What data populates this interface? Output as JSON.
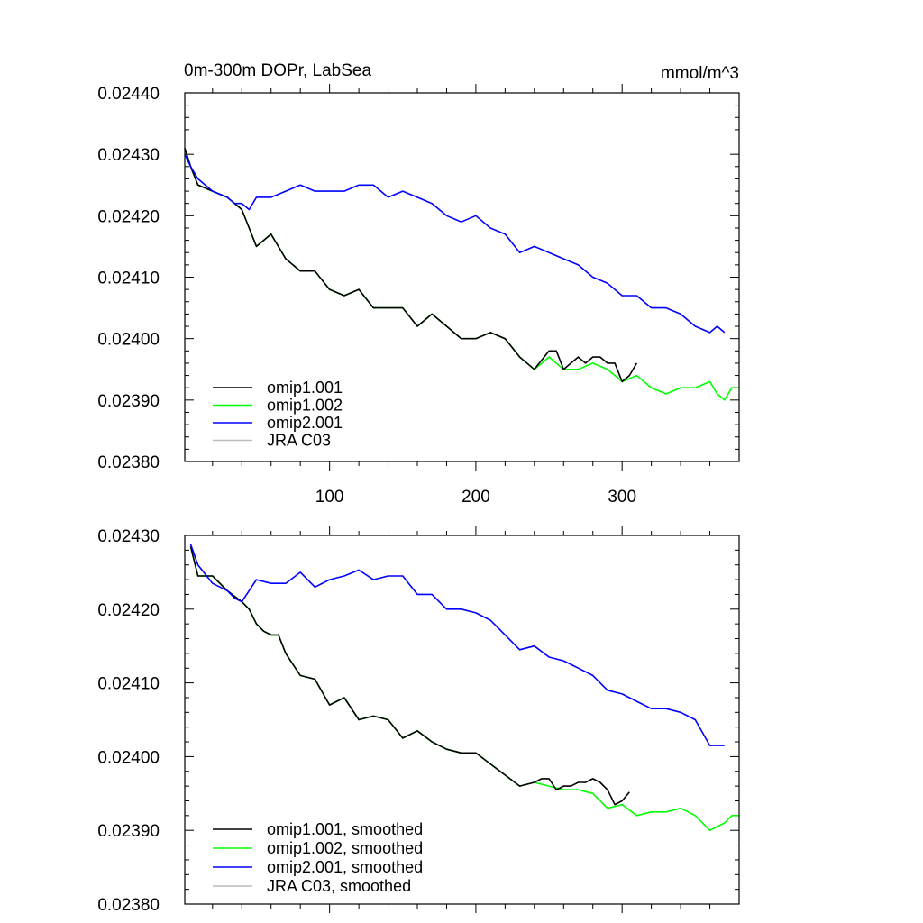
{
  "chart_data": [
    {
      "type": "line",
      "title": "0m-300m DOPr, LabSea",
      "units": "mmol/m^3",
      "xlabel": "",
      "ylabel": "",
      "xlim": [
        1,
        380
      ],
      "ylim": [
        0.0238,
        0.0244
      ],
      "xticks": [
        100,
        200,
        300
      ],
      "xtick_labels": [
        "100",
        "200",
        "300"
      ],
      "yticks": [
        0.0238,
        0.0239,
        0.024,
        0.0241,
        0.0242,
        0.0243,
        0.0244
      ],
      "ytick_labels": [
        "0.02380",
        "0.02390",
        "0.02400",
        "0.02410",
        "0.02420",
        "0.02430",
        "0.02440"
      ],
      "legend_position": "bottom-left",
      "series": [
        {
          "name": "omip1.001",
          "color": "#000000",
          "x": [
            1,
            5,
            10,
            20,
            30,
            40,
            50,
            60,
            70,
            80,
            90,
            100,
            110,
            120,
            130,
            140,
            150,
            160,
            170,
            180,
            190,
            200,
            210,
            220,
            230,
            240,
            250,
            255,
            260,
            265,
            270,
            275,
            280,
            285,
            290,
            295,
            300,
            305,
            310
          ],
          "y": [
            0.02431,
            0.02428,
            0.02425,
            0.02424,
            0.02423,
            0.02421,
            0.02415,
            0.02417,
            0.02413,
            0.02411,
            0.02411,
            0.02408,
            0.02407,
            0.02408,
            0.02405,
            0.02405,
            0.02405,
            0.02402,
            0.02404,
            0.02402,
            0.024,
            0.024,
            0.02401,
            0.024,
            0.02397,
            0.02395,
            0.02398,
            0.02398,
            0.02395,
            0.02396,
            0.02397,
            0.02396,
            0.02397,
            0.02397,
            0.02396,
            0.02396,
            0.02393,
            0.02394,
            0.02396
          ]
        },
        {
          "name": "omip1.002",
          "color": "#00ff00",
          "x": [
            1,
            5,
            10,
            20,
            30,
            40,
            50,
            60,
            70,
            80,
            90,
            100,
            110,
            120,
            130,
            140,
            150,
            160,
            170,
            180,
            190,
            200,
            210,
            220,
            230,
            240,
            250,
            260,
            270,
            280,
            290,
            300,
            310,
            320,
            330,
            340,
            350,
            360,
            365,
            370,
            375,
            380
          ],
          "y": [
            0.02431,
            0.02428,
            0.02425,
            0.02424,
            0.02423,
            0.02421,
            0.02415,
            0.02417,
            0.02413,
            0.02411,
            0.02411,
            0.02408,
            0.02407,
            0.02408,
            0.02405,
            0.02405,
            0.02405,
            0.02402,
            0.02404,
            0.02402,
            0.024,
            0.024,
            0.02401,
            0.024,
            0.02397,
            0.02395,
            0.02397,
            0.02395,
            0.02395,
            0.02396,
            0.02395,
            0.02393,
            0.02394,
            0.02392,
            0.02391,
            0.02392,
            0.02392,
            0.02393,
            0.02391,
            0.0239,
            0.02392,
            0.02392
          ]
        },
        {
          "name": "omip2.001",
          "color": "#0000ff",
          "x": [
            1,
            5,
            10,
            20,
            30,
            35,
            40,
            45,
            50,
            60,
            70,
            80,
            90,
            100,
            110,
            120,
            130,
            140,
            150,
            160,
            170,
            180,
            190,
            200,
            210,
            220,
            230,
            240,
            250,
            260,
            270,
            280,
            290,
            300,
            310,
            320,
            330,
            340,
            350,
            360,
            365,
            370
          ],
          "y": [
            0.0243,
            0.02428,
            0.02426,
            0.02424,
            0.02423,
            0.02422,
            0.02422,
            0.02421,
            0.02423,
            0.02423,
            0.02424,
            0.02425,
            0.02424,
            0.02424,
            0.02424,
            0.02425,
            0.02425,
            0.02423,
            0.02424,
            0.02423,
            0.02422,
            0.0242,
            0.02419,
            0.0242,
            0.02418,
            0.02417,
            0.02414,
            0.02415,
            0.02414,
            0.02413,
            0.02412,
            0.0241,
            0.02409,
            0.02407,
            0.02407,
            0.02405,
            0.02405,
            0.02404,
            0.02402,
            0.02401,
            0.02402,
            0.02401
          ]
        },
        {
          "name": "JRA C03",
          "color": "#bbbbbb",
          "x": [],
          "y": []
        }
      ]
    },
    {
      "type": "line",
      "title": "",
      "xlabel": "",
      "ylabel": "",
      "xlim": [
        1,
        380
      ],
      "ylim": [
        0.0238,
        0.0243
      ],
      "xticks": [
        100,
        200,
        300
      ],
      "xtick_labels": [],
      "yticks": [
        0.0238,
        0.0239,
        0.024,
        0.0241,
        0.0242,
        0.0243
      ],
      "ytick_labels": [
        "0.02380",
        "0.02390",
        "0.02400",
        "0.02410",
        "0.02420",
        "0.02430"
      ],
      "legend_position": "bottom-left",
      "series": [
        {
          "name": "omip1.001, smoothed",
          "color": "#000000",
          "x": [
            5,
            10,
            20,
            30,
            40,
            45,
            50,
            55,
            60,
            65,
            70,
            80,
            90,
            100,
            110,
            120,
            130,
            140,
            150,
            160,
            170,
            180,
            190,
            200,
            210,
            220,
            230,
            240,
            245,
            250,
            255,
            260,
            265,
            270,
            275,
            280,
            285,
            290,
            295,
            300,
            305
          ],
          "y": [
            0.024285,
            0.024245,
            0.024245,
            0.024225,
            0.02421,
            0.0242,
            0.02418,
            0.02417,
            0.024165,
            0.024165,
            0.02414,
            0.02411,
            0.024105,
            0.02407,
            0.02408,
            0.02405,
            0.024055,
            0.02405,
            0.024025,
            0.024035,
            0.02402,
            0.02401,
            0.024005,
            0.024005,
            0.02399,
            0.023975,
            0.02396,
            0.023965,
            0.02397,
            0.02397,
            0.023955,
            0.02396,
            0.02396,
            0.023965,
            0.023965,
            0.02397,
            0.023965,
            0.023955,
            0.023935,
            0.02394,
            0.023952
          ]
        },
        {
          "name": "omip1.002, smoothed",
          "color": "#00ff00",
          "x": [
            5,
            10,
            20,
            30,
            40,
            45,
            50,
            55,
            60,
            65,
            70,
            80,
            90,
            100,
            110,
            120,
            130,
            140,
            150,
            160,
            170,
            180,
            190,
            200,
            210,
            220,
            230,
            240,
            250,
            260,
            270,
            280,
            290,
            300,
            310,
            320,
            330,
            340,
            350,
            360,
            365,
            370,
            375,
            380
          ],
          "y": [
            0.024285,
            0.024245,
            0.024245,
            0.024225,
            0.02421,
            0.0242,
            0.02418,
            0.02417,
            0.024165,
            0.024165,
            0.02414,
            0.02411,
            0.024105,
            0.02407,
            0.02408,
            0.02405,
            0.024055,
            0.02405,
            0.024025,
            0.024035,
            0.02402,
            0.02401,
            0.024005,
            0.024005,
            0.02399,
            0.023975,
            0.02396,
            0.023965,
            0.02396,
            0.023955,
            0.023955,
            0.02395,
            0.02393,
            0.023935,
            0.02392,
            0.023925,
            0.023925,
            0.02393,
            0.02392,
            0.0239,
            0.023905,
            0.02391,
            0.02392,
            0.02392
          ]
        },
        {
          "name": "omip2.001, smoothed",
          "color": "#0000ff",
          "x": [
            5,
            10,
            20,
            30,
            35,
            40,
            50,
            60,
            70,
            80,
            90,
            100,
            110,
            120,
            130,
            140,
            150,
            160,
            170,
            180,
            190,
            200,
            210,
            220,
            230,
            240,
            250,
            260,
            270,
            280,
            290,
            300,
            310,
            320,
            330,
            340,
            350,
            360,
            365,
            370
          ],
          "y": [
            0.024288,
            0.02426,
            0.024235,
            0.024225,
            0.024215,
            0.02421,
            0.02424,
            0.024235,
            0.024235,
            0.02425,
            0.02423,
            0.02424,
            0.024245,
            0.024253,
            0.02424,
            0.024245,
            0.024245,
            0.02422,
            0.02422,
            0.0242,
            0.0242,
            0.024195,
            0.024185,
            0.024165,
            0.024145,
            0.02415,
            0.024135,
            0.02413,
            0.02412,
            0.02411,
            0.02409,
            0.024085,
            0.024075,
            0.024065,
            0.024065,
            0.02406,
            0.02405,
            0.024015,
            0.024015,
            0.024015
          ]
        },
        {
          "name": "JRA C03, smoothed",
          "color": "#bbbbbb",
          "x": [],
          "y": []
        }
      ]
    }
  ]
}
